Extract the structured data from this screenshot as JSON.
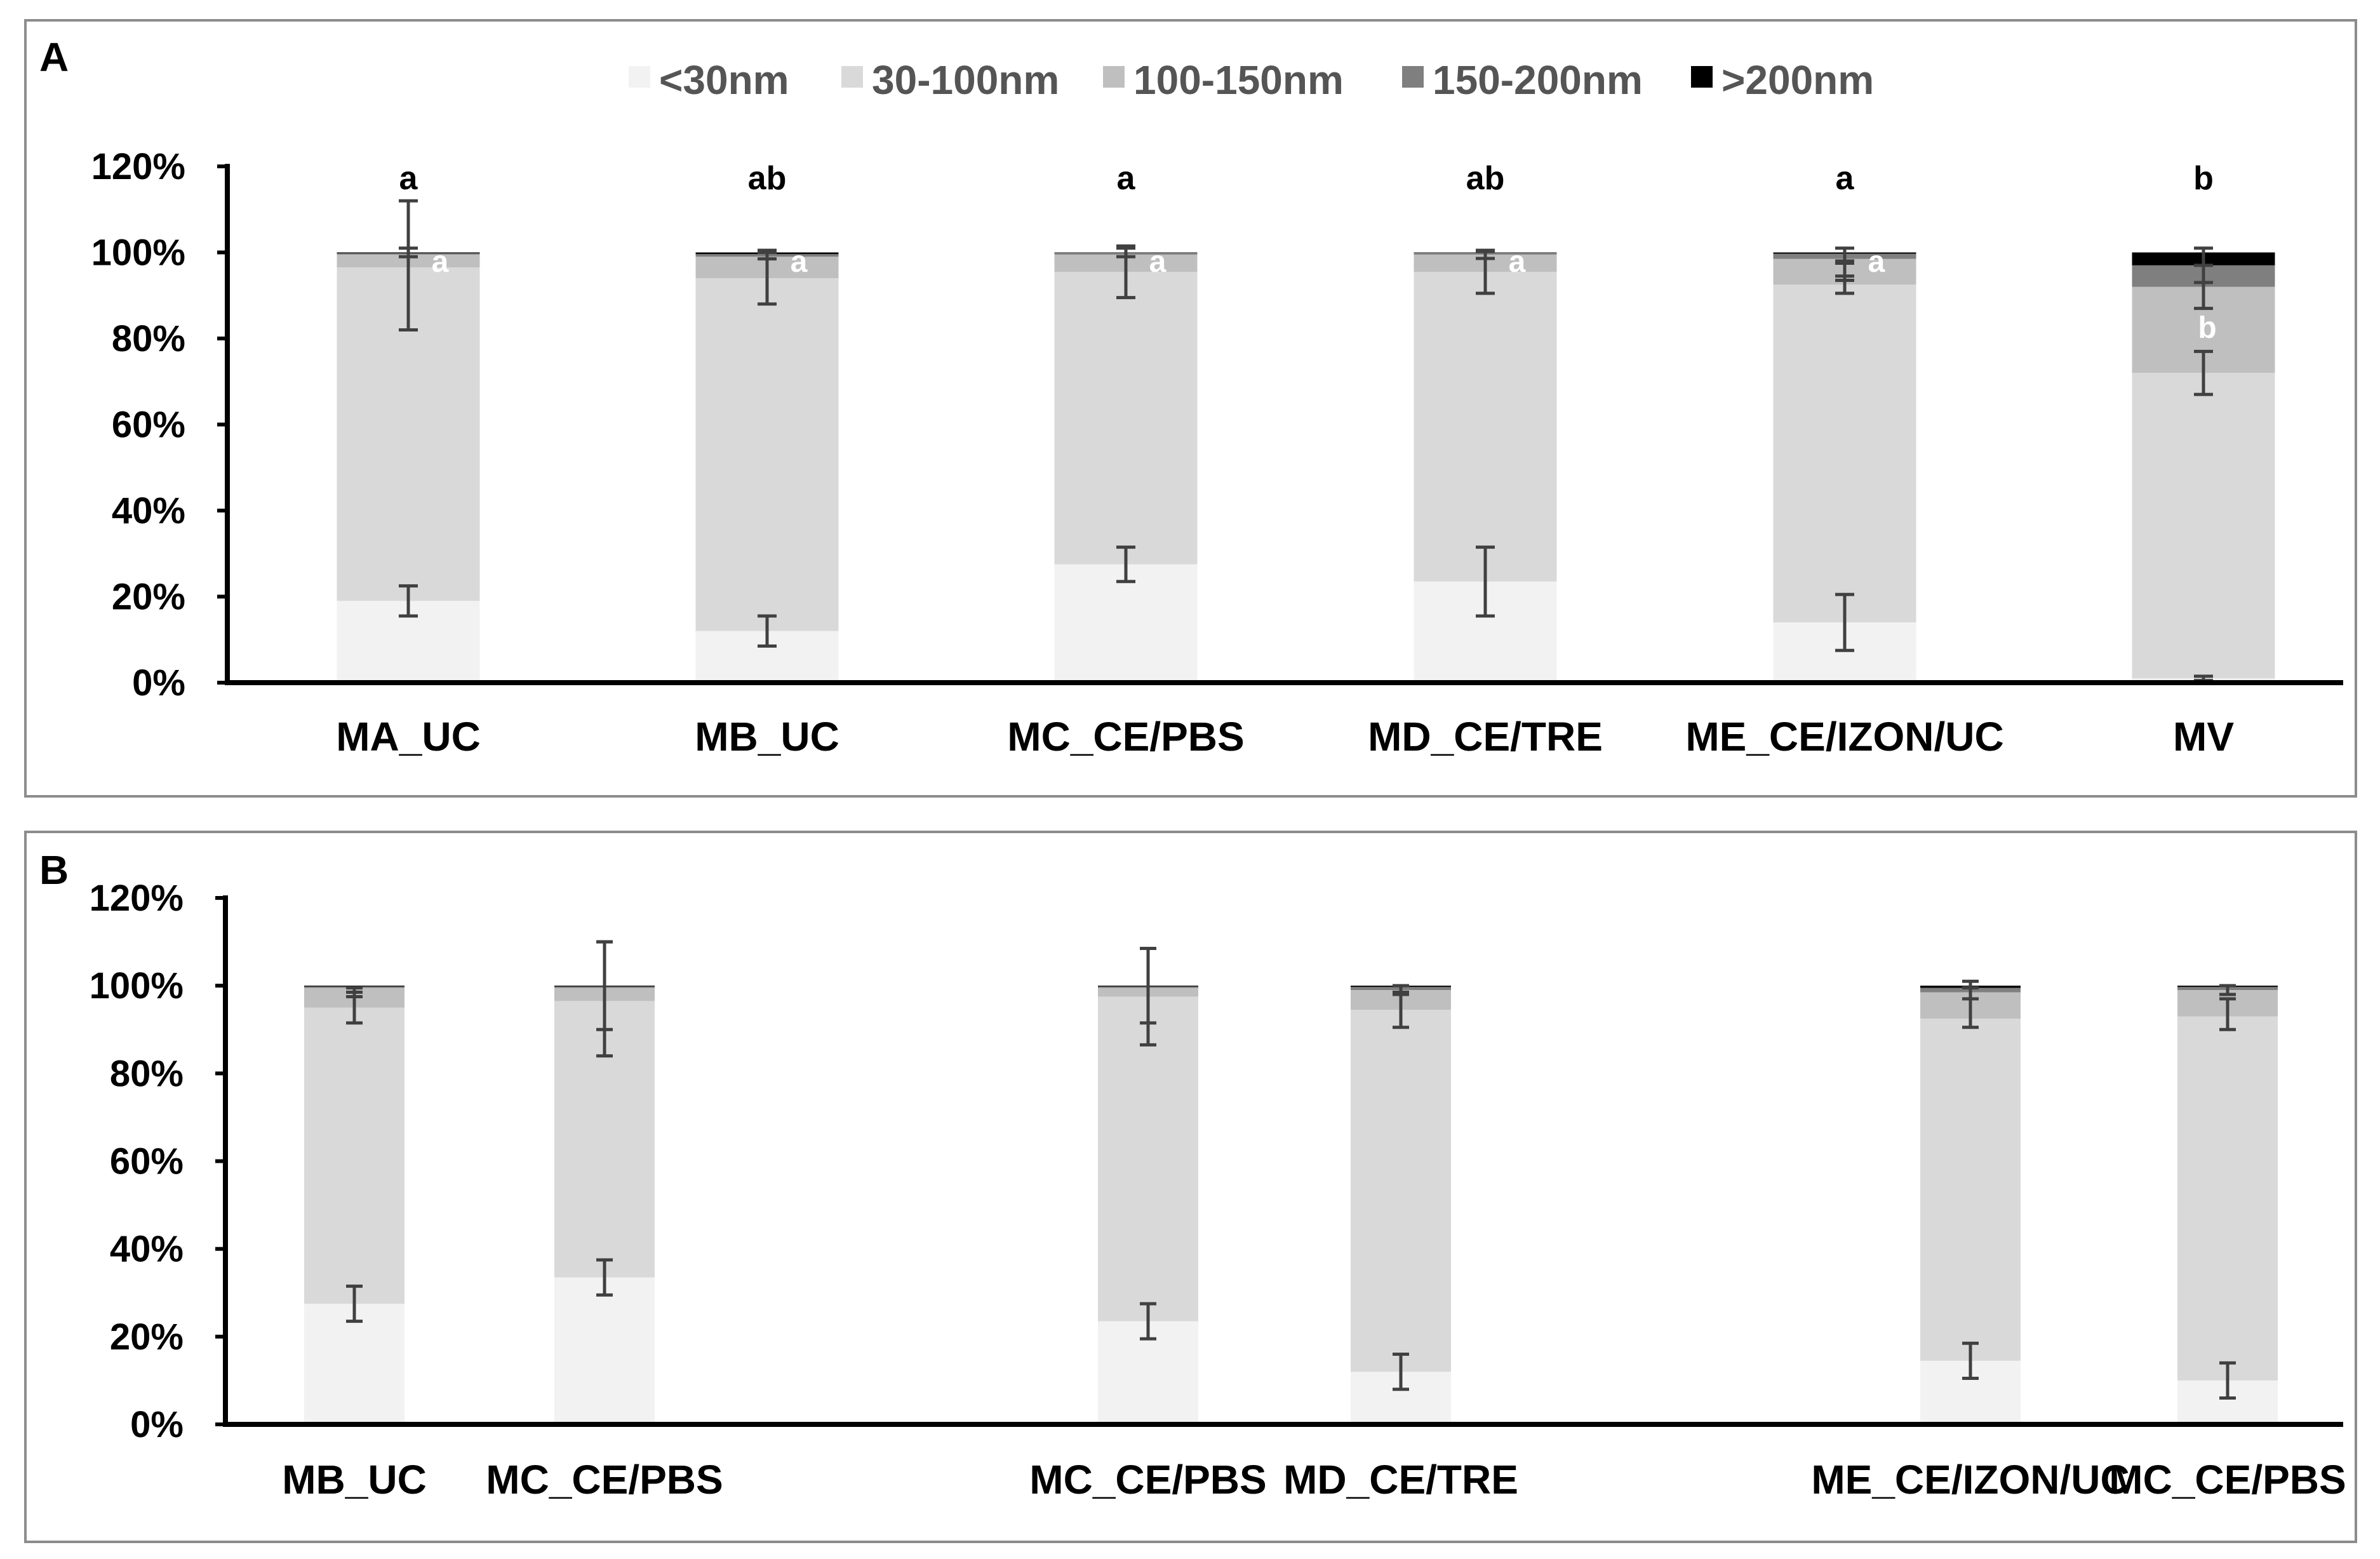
{
  "colors": {
    "<30nm": "#f2f2f2",
    "30-100nm": "#d9d9d9",
    "100-150nm": "#bfbfbf",
    "150-200nm": "#7f7f7f",
    ">200nm": "#000000"
  },
  "legend": [
    "<30nm",
    "30-100nm",
    "100-150nm",
    "150-200nm",
    ">200nm"
  ],
  "chart_data": [
    {
      "panel": "A",
      "type": "bar",
      "stacked": true,
      "ylim": [
        0,
        120
      ],
      "yticks": [
        "0%",
        "20%",
        "40%",
        "60%",
        "80%",
        "100%",
        "120%"
      ],
      "categories": [
        "MA_UC",
        "MB_UC",
        "MC_CE/PBS",
        "MD_CE/TRE",
        "ME_CE/IZON/UC",
        "MV"
      ],
      "significance_top": [
        "a",
        "ab",
        "a",
        "ab",
        "a",
        "b"
      ],
      "significance_inside": [
        "a",
        "a",
        "a",
        "a",
        "a",
        "b"
      ],
      "series": [
        {
          "name": "<30nm",
          "values": [
            19,
            12,
            27.5,
            23.5,
            14,
            1
          ]
        },
        {
          "name": "30-100nm",
          "values": [
            77.5,
            82,
            68,
            72,
            78.5,
            71
          ]
        },
        {
          "name": "100-150nm",
          "values": [
            3,
            5,
            4,
            4,
            6,
            20
          ]
        },
        {
          "name": "150-200nm",
          "values": [
            0.3,
            0.6,
            0.4,
            0.4,
            1.2,
            5
          ]
        },
        {
          "name": ">200nm",
          "values": [
            0.2,
            0.4,
            0.1,
            0.1,
            0.3,
            3
          ]
        }
      ],
      "errors": [
        [
          [
            19,
            3.5
          ],
          [
            97,
            15
          ],
          [
            100,
            1
          ]
        ],
        [
          [
            12,
            3.5
          ],
          [
            94,
            6
          ],
          [
            99.5,
            1
          ]
        ],
        [
          [
            27.5,
            4
          ],
          [
            95.5,
            6
          ],
          [
            100,
            1
          ]
        ],
        [
          [
            23.5,
            8
          ],
          [
            95.5,
            5
          ],
          [
            99.4,
            0.8
          ]
        ],
        [
          [
            14,
            6.5
          ],
          [
            92.5,
            2
          ],
          [
            95.5,
            2
          ],
          [
            99.5,
            1.5
          ]
        ],
        [
          [
            1,
            0.5
          ],
          [
            72,
            5
          ],
          [
            92,
            5
          ],
          [
            97,
            4
          ]
        ]
      ]
    },
    {
      "panel": "B",
      "type": "bar",
      "stacked": true,
      "ylim": [
        0,
        120
      ],
      "yticks": [
        "0%",
        "20%",
        "40%",
        "60%",
        "80%",
        "100%",
        "120%"
      ],
      "categories": [
        "MB_UC",
        "MC_CE/PBS",
        "MC_CE/PBS",
        "MD_CE/TRE",
        "ME_CE/IZON/UC",
        "MC_CE/PBS"
      ],
      "series": [
        {
          "name": "<30nm",
          "values": [
            27.5,
            33.5,
            23.5,
            12,
            14.5,
            10
          ]
        },
        {
          "name": "30-100nm",
          "values": [
            67.5,
            63,
            74,
            82.5,
            78,
            83
          ]
        },
        {
          "name": "100-150nm",
          "values": [
            4.5,
            3,
            2,
            4.5,
            6,
            6
          ]
        },
        {
          "name": "150-200nm",
          "values": [
            0.3,
            0.3,
            0.3,
            0.7,
            1,
            0.7
          ]
        },
        {
          "name": ">200nm",
          "values": [
            0.2,
            0.2,
            0.2,
            0.3,
            0.5,
            0.3
          ]
        }
      ],
      "errors": [
        [
          [
            27.5,
            4
          ],
          [
            95,
            3.5
          ],
          [
            98.5,
            1
          ]
        ],
        [
          [
            33.5,
            4
          ],
          [
            97,
            13
          ],
          [
            100,
            10
          ]
        ],
        [
          [
            23.5,
            4
          ],
          [
            97.5,
            11
          ],
          [
            100,
            8.5
          ]
        ],
        [
          [
            12,
            4
          ],
          [
            94.5,
            4
          ],
          [
            99,
            1
          ]
        ],
        [
          [
            14.5,
            4
          ],
          [
            95,
            4.5
          ],
          [
            99,
            2
          ]
        ],
        [
          [
            10,
            4
          ],
          [
            93.5,
            3.5
          ],
          [
            99,
            1
          ]
        ]
      ]
    }
  ]
}
